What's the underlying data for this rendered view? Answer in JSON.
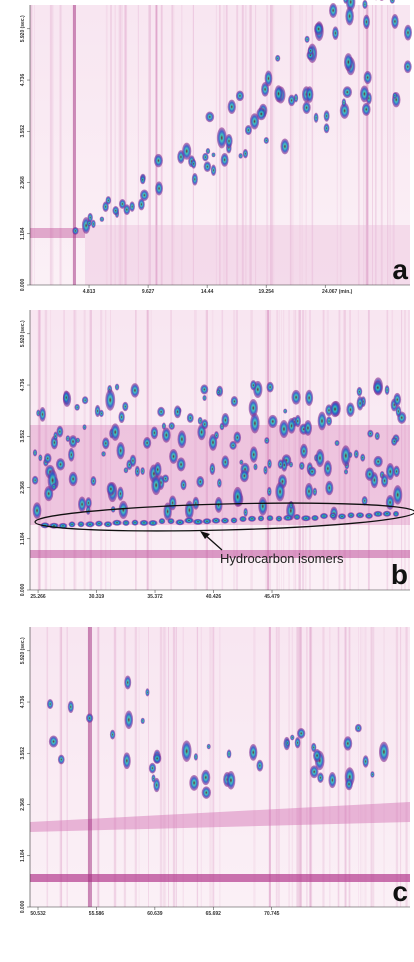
{
  "chart_data": [
    {
      "type": "contour",
      "panel_label": "a",
      "xlim": [
        0,
        30.98
      ],
      "ylim": [
        0,
        6.47
      ],
      "xticks": [
        4.813,
        9.627,
        14.44,
        19.254,
        {
          "value": 24.067,
          "label": "24.067 (min.)"
        }
      ],
      "yticks": [
        {
          "value": 0,
          "label": "0.000"
        },
        1.184,
        2.368,
        3.552,
        4.736,
        {
          "value": 5.92,
          "label": "5.920 (sec.)"
        }
      ]
    },
    {
      "type": "contour",
      "panel_label": "b",
      "annotation": "Hydrocarbon isomers",
      "xlim": [
        24.57,
        57.4
      ],
      "ylim": [
        0,
        6.47
      ],
      "xticks": [
        25.266,
        30.319,
        35.372,
        40.426,
        45.479
      ],
      "yticks": [
        {
          "value": 0,
          "label": "0.000"
        },
        1.184,
        2.368,
        3.552,
        4.736,
        {
          "value": 5.92,
          "label": "5.920 (sec.)"
        }
      ]
    },
    {
      "type": "contour",
      "panel_label": "c",
      "xlim": [
        49.84,
        82.7
      ],
      "ylim": [
        0,
        6.47
      ],
      "xticks": [
        50.532,
        55.586,
        60.639,
        65.692,
        70.745
      ],
      "yticks": [
        {
          "value": 0,
          "label": "0.000"
        },
        1.184,
        2.368,
        3.552,
        4.736,
        {
          "value": 5.92,
          "label": "5.920 (sec.)"
        }
      ]
    }
  ]
}
